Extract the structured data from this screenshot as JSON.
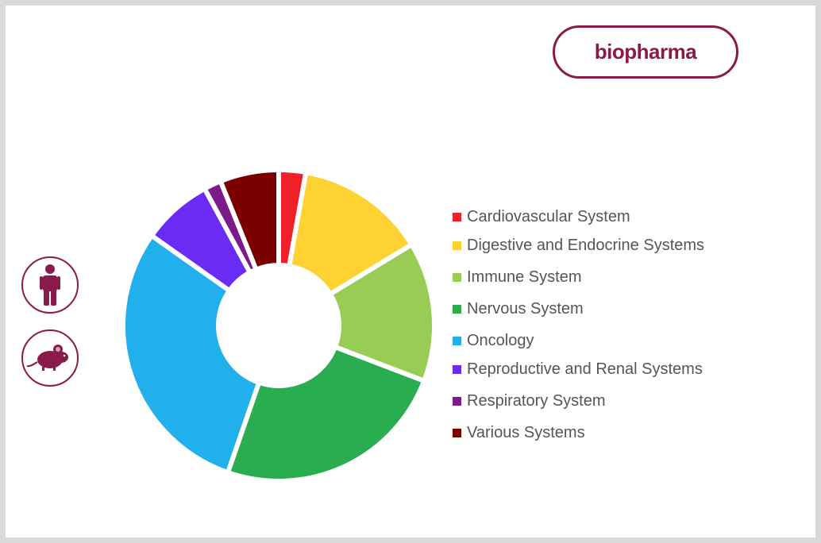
{
  "brand": {
    "label": "biopharma"
  },
  "species": [
    {
      "name": "human",
      "icon": "human-icon"
    },
    {
      "name": "mouse",
      "icon": "mouse-icon"
    }
  ],
  "colors": {
    "accent": "#8a1a4a"
  },
  "chart_data": {
    "type": "pie",
    "donut": true,
    "categories": [
      "Cardiovascular System",
      "Digestive and Endocrine Systems",
      "Immune System",
      "Nervous System",
      "Oncology",
      "Reproductive and Renal Systems",
      "Respiratory System",
      "Various Systems"
    ],
    "values": [
      2.8,
      13.5,
      14.5,
      24.5,
      29.5,
      7.3,
      1.8,
      6.1
    ],
    "colors": [
      "#f0202a",
      "#ffd233",
      "#99cc55",
      "#2aac50",
      "#22b0ec",
      "#6a2cf5",
      "#7d1a8a",
      "#7a0000"
    ],
    "legend_position": "right"
  }
}
